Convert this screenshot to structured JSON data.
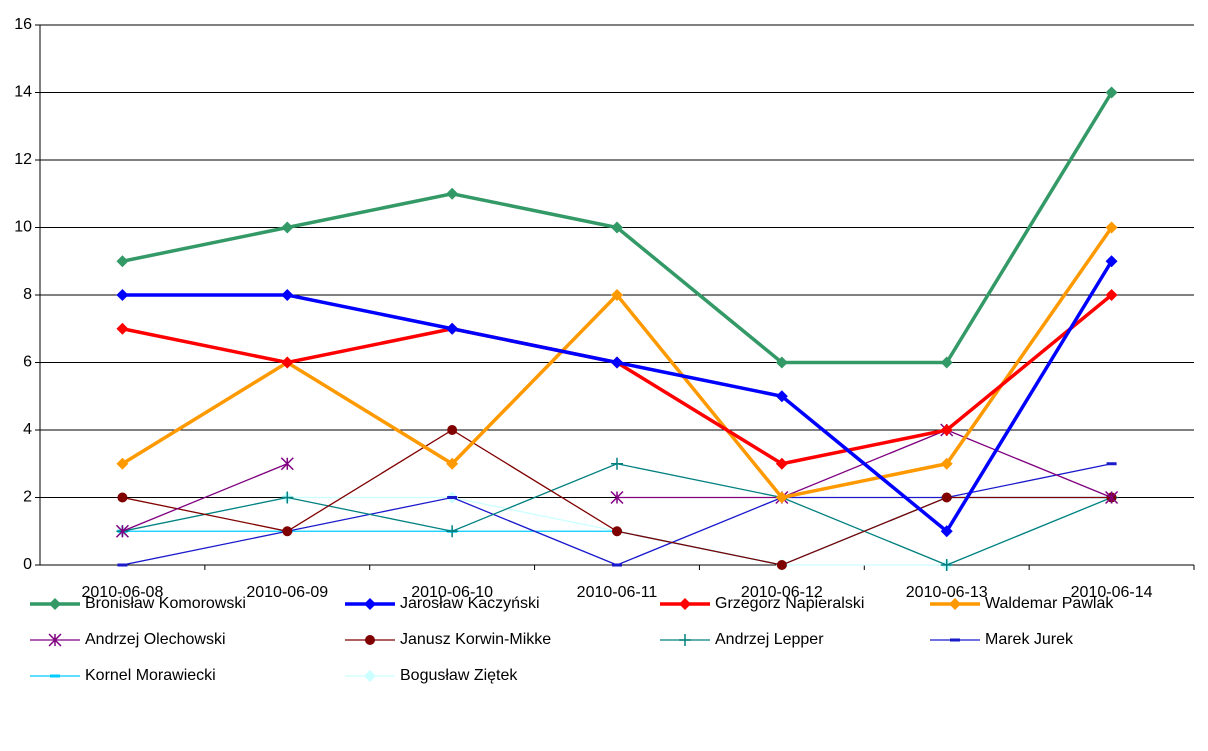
{
  "chart_data": {
    "type": "line",
    "categories": [
      "2010-06-08",
      "2010-06-09",
      "2010-06-10",
      "2010-06-11",
      "2010-06-12",
      "2010-06-13",
      "2010-06-14"
    ],
    "ylim": [
      0,
      16
    ],
    "yticks": [
      0,
      2,
      4,
      6,
      8,
      10,
      12,
      14,
      16
    ],
    "grid": true,
    "legend": "bottom",
    "series": [
      {
        "name": "Bronisław Komorowski",
        "color": "#339966",
        "marker": "diamond",
        "line_width": 3.5,
        "values": [
          9,
          10,
          11,
          10,
          6,
          6,
          14
        ]
      },
      {
        "name": "Jarosław Kaczyński",
        "color": "#0000ff",
        "marker": "diamond",
        "line_width": 3.5,
        "values": [
          8,
          8,
          7,
          6,
          5,
          1,
          9
        ]
      },
      {
        "name": "Grzegorz Napieralski",
        "color": "#ff0000",
        "marker": "diamond",
        "line_width": 3.5,
        "values": [
          7,
          6,
          7,
          6,
          3,
          4,
          8
        ]
      },
      {
        "name": "Waldemar Pawlak",
        "color": "#ff9900",
        "marker": "diamond",
        "line_width": 3.5,
        "values": [
          3,
          6,
          3,
          8,
          2,
          3,
          10
        ]
      },
      {
        "name": "Andrzej Olechowski",
        "color": "#800080",
        "marker": "asterisk",
        "line_width": 1.3,
        "values": [
          1,
          3,
          null,
          2,
          2,
          4,
          2
        ]
      },
      {
        "name": "Janusz Korwin-Mikke",
        "color": "#800000",
        "marker": "circle",
        "line_width": 1.3,
        "values": [
          2,
          1,
          4,
          1,
          0,
          2,
          2
        ]
      },
      {
        "name": "Andrzej Lepper",
        "color": "#008080",
        "marker": "plus",
        "line_width": 1.3,
        "values": [
          1,
          2,
          1,
          3,
          2,
          0,
          2
        ]
      },
      {
        "name": "Marek Jurek",
        "color": "#1a1acc",
        "marker": "dash",
        "line_width": 1.3,
        "values": [
          0,
          1,
          2,
          0,
          2,
          2,
          3
        ]
      },
      {
        "name": "Kornel Morawiecki",
        "color": "#00ccff",
        "marker": "dash",
        "line_width": 1.3,
        "values": [
          1,
          1,
          1,
          1,
          0,
          2,
          2
        ]
      },
      {
        "name": "Bogusław Ziętek",
        "color": "#ccffff",
        "marker": "diamond",
        "line_width": 1.3,
        "values": [
          1,
          2,
          2,
          1,
          0,
          0,
          2
        ]
      }
    ]
  }
}
